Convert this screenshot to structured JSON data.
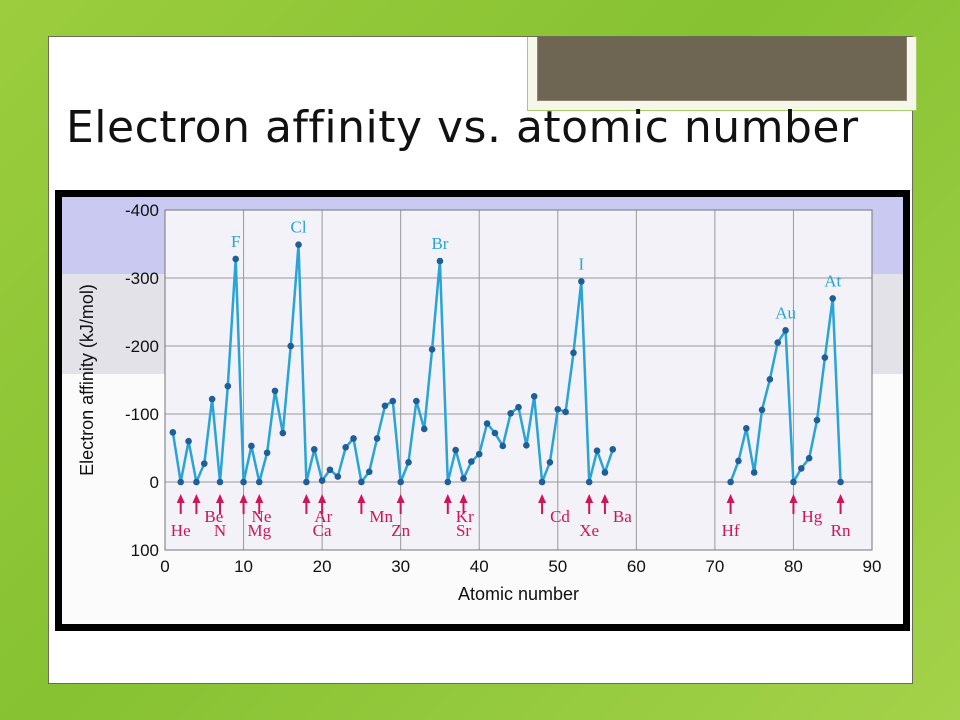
{
  "slide": {
    "title": "Electron affinity vs. atomic number"
  },
  "colors": {
    "background": "#8cc63f",
    "series": "#2aa3d8",
    "points": "#1f5e96",
    "arrows": "#d0145a",
    "band": "#c9c9f2",
    "plot_bg": "#f2f2f8"
  },
  "chart_data": {
    "type": "line",
    "xlabel": "Atomic number",
    "ylabel": "Electron affinity (kJ/mol)",
    "xlim": [
      0,
      90
    ],
    "ylim": [
      100,
      -400
    ],
    "x_ticks": [
      "0",
      "10",
      "20",
      "30",
      "40",
      "50",
      "60",
      "70",
      "80",
      "90"
    ],
    "y_ticks": [
      "-400",
      "-300",
      "-200",
      "-100",
      "0",
      "100"
    ],
    "grid": true,
    "series": [
      {
        "segments": [
          [
            [
              1,
              -73
            ],
            [
              2,
              0
            ],
            [
              3,
              -60
            ],
            [
              4,
              0
            ],
            [
              5,
              -27
            ],
            [
              6,
              -122
            ],
            [
              7,
              0
            ],
            [
              8,
              -141
            ],
            [
              9,
              -328
            ],
            [
              10,
              0
            ],
            [
              11,
              -53
            ],
            [
              12,
              0
            ],
            [
              13,
              -43
            ],
            [
              14,
              -134
            ],
            [
              15,
              -72
            ],
            [
              16,
              -200
            ],
            [
              17,
              -349
            ],
            [
              18,
              0
            ],
            [
              19,
              -48
            ],
            [
              20,
              -2
            ],
            [
              21,
              -18
            ],
            [
              22,
              -8
            ],
            [
              23,
              -51
            ],
            [
              24,
              -64
            ],
            [
              25,
              0
            ],
            [
              26,
              -15
            ],
            [
              27,
              -64
            ],
            [
              28,
              -112
            ],
            [
              29,
              -119
            ],
            [
              30,
              0
            ],
            [
              31,
              -29
            ],
            [
              32,
              -119
            ],
            [
              33,
              -78
            ],
            [
              34,
              -195
            ],
            [
              35,
              -325
            ],
            [
              36,
              0
            ],
            [
              37,
              -47
            ],
            [
              38,
              -5
            ],
            [
              39,
              -30
            ],
            [
              40,
              -41
            ],
            [
              41,
              -86
            ],
            [
              42,
              -72
            ],
            [
              43,
              -53
            ],
            [
              44,
              -101
            ],
            [
              45,
              -110
            ],
            [
              46,
              -54
            ],
            [
              47,
              -126
            ],
            [
              48,
              0
            ],
            [
              49,
              -29
            ],
            [
              50,
              -107
            ],
            [
              51,
              -103
            ],
            [
              52,
              -190
            ],
            [
              53,
              -295
            ],
            [
              54,
              0
            ],
            [
              55,
              -46
            ],
            [
              56,
              -14
            ],
            [
              57,
              -48
            ]
          ],
          [
            [
              72,
              0
            ],
            [
              73,
              -31
            ],
            [
              74,
              -79
            ],
            [
              75,
              -14
            ],
            [
              76,
              -106
            ],
            [
              77,
              -151
            ],
            [
              78,
              -205
            ],
            [
              79,
              -223
            ],
            [
              80,
              0
            ],
            [
              81,
              -20
            ],
            [
              82,
              -35
            ],
            [
              83,
              -91
            ],
            [
              84,
              -183
            ],
            [
              85,
              -270
            ],
            [
              86,
              0
            ]
          ]
        ]
      }
    ],
    "peak_labels": [
      {
        "text": "F",
        "x": 9,
        "y": -328
      },
      {
        "text": "Cl",
        "x": 17,
        "y": -349
      },
      {
        "text": "Br",
        "x": 35,
        "y": -325
      },
      {
        "text": "I",
        "x": 53,
        "y": -295
      },
      {
        "text": "Au",
        "x": 79,
        "y": -223
      },
      {
        "text": "At",
        "x": 85,
        "y": -270
      }
    ],
    "arrow_labels": [
      {
        "text": "He",
        "x": 2
      },
      {
        "text": "Be",
        "x": 4
      },
      {
        "text": "N",
        "x": 7
      },
      {
        "text": "Ne",
        "x": 10
      },
      {
        "text": "Mg",
        "x": 12
      },
      {
        "text": "Ar",
        "x": 18
      },
      {
        "text": "Ca",
        "x": 20
      },
      {
        "text": "Mn",
        "x": 25
      },
      {
        "text": "Zn",
        "x": 30
      },
      {
        "text": "Kr",
        "x": 36
      },
      {
        "text": "Sr",
        "x": 38
      },
      {
        "text": "Cd",
        "x": 48
      },
      {
        "text": "Xe",
        "x": 54
      },
      {
        "text": "Ba",
        "x": 56
      },
      {
        "text": "Hf",
        "x": 72
      },
      {
        "text": "Hg",
        "x": 80
      },
      {
        "text": "Rn",
        "x": 86
      }
    ]
  }
}
